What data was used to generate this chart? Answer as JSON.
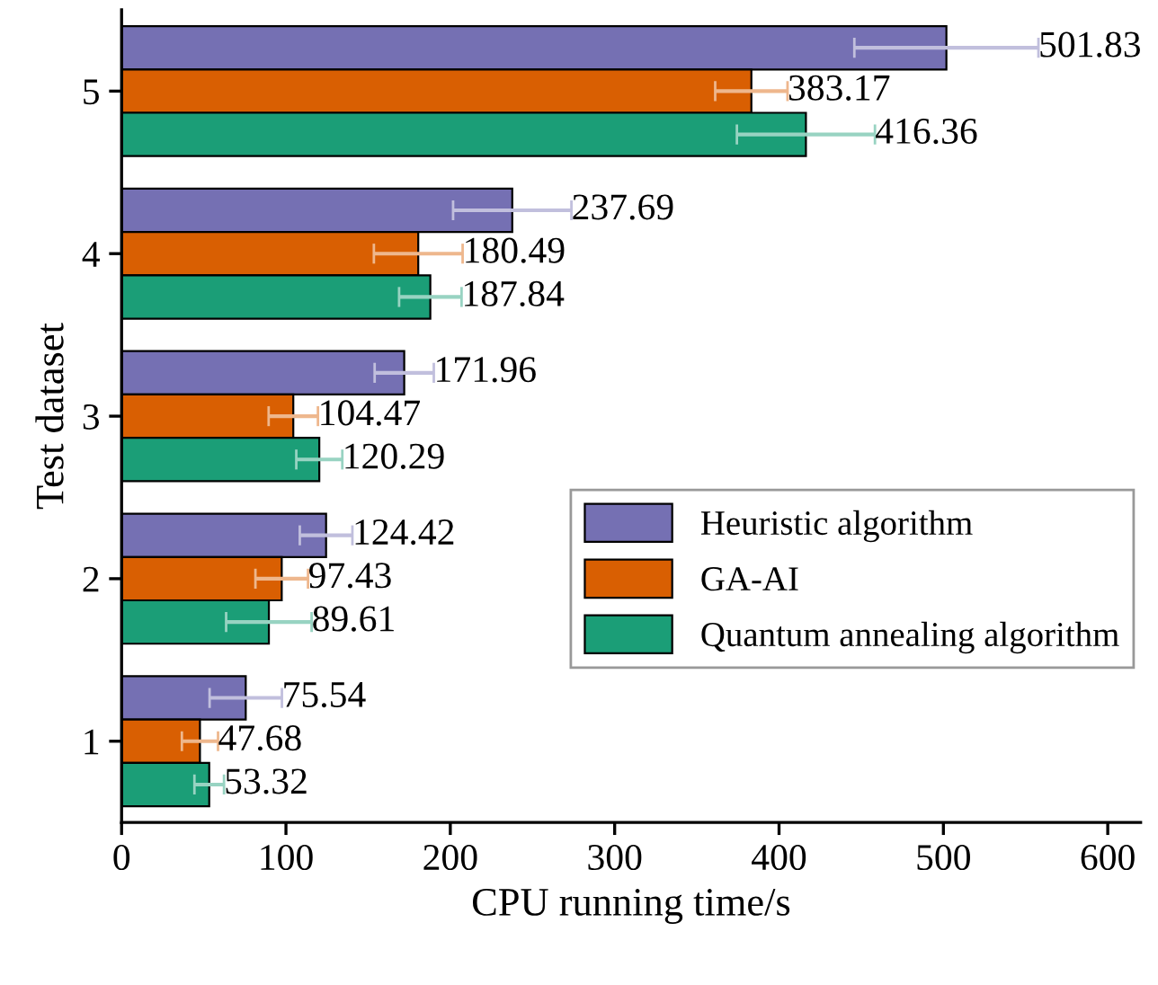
{
  "chart_data": {
    "type": "bar",
    "orientation": "horizontal",
    "xlabel": "CPU running time/s",
    "ylabel": "Test dataset",
    "categories": [
      "5",
      "4",
      "3",
      "2",
      "1"
    ],
    "series": [
      {
        "name": "Heuristic algorithm",
        "color": "#7570b3",
        "values": [
          501.83,
          237.69,
          171.96,
          124.42,
          75.54
        ],
        "errors": [
          56,
          36,
          18,
          16,
          22
        ]
      },
      {
        "name": "GA-AI",
        "color": "#d95f02",
        "values": [
          383.17,
          180.49,
          104.47,
          97.43,
          47.68
        ],
        "errors": [
          22,
          27,
          15,
          16,
          11
        ]
      },
      {
        "name": "Quantum annealing algorithm",
        "color": "#1b9e77",
        "values": [
          416.36,
          187.84,
          120.29,
          89.61,
          53.32
        ],
        "errors": [
          42,
          19,
          14,
          26,
          9
        ]
      }
    ],
    "xlim": [
      0,
      620
    ],
    "xticks": [
      0,
      100,
      200,
      300,
      400,
      500,
      600
    ],
    "data_labels": true,
    "legend": "right",
    "grid": false
  }
}
